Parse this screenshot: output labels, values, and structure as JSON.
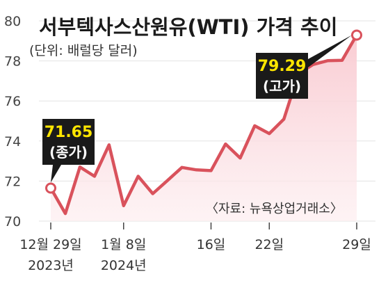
{
  "chart_data": {
    "type": "area",
    "title": "서부텍사스산원유(WTI) 가격 추이",
    "subtitle": "(단위: 배럴당 달러)",
    "source": "〈자료: 뉴욕상업거래소〉",
    "ylim": [
      70,
      80
    ],
    "yticks": [
      "80",
      "78",
      "76",
      "74",
      "72",
      "70"
    ],
    "xtick_labels": [
      {
        "line1": "12월 29일",
        "line2": "2023년"
      },
      {
        "line1": "1월 8일",
        "line2": "2024년"
      },
      {
        "line1": "16일",
        "line2": ""
      },
      {
        "line1": "22일",
        "line2": ""
      },
      {
        "line1": "29일",
        "line2": ""
      }
    ],
    "series": [
      {
        "values": [
          71.65,
          70.38,
          72.7,
          72.24,
          73.81,
          70.77,
          72.24,
          71.37,
          72.02,
          72.68,
          72.56,
          72.52,
          73.85,
          73.15,
          74.76,
          74.37,
          75.09,
          77.36,
          77.82,
          78.01,
          78.03,
          79.29
        ]
      }
    ],
    "annotations": [
      {
        "value": "71.65",
        "label": "(종가)"
      },
      {
        "value": "79.29",
        "label": "(고가)"
      }
    ],
    "colors": {
      "line": "#d9525c",
      "fill": "#fbe0e4",
      "callout": "#1a1a1a",
      "callout_value": "#ffe600"
    }
  }
}
